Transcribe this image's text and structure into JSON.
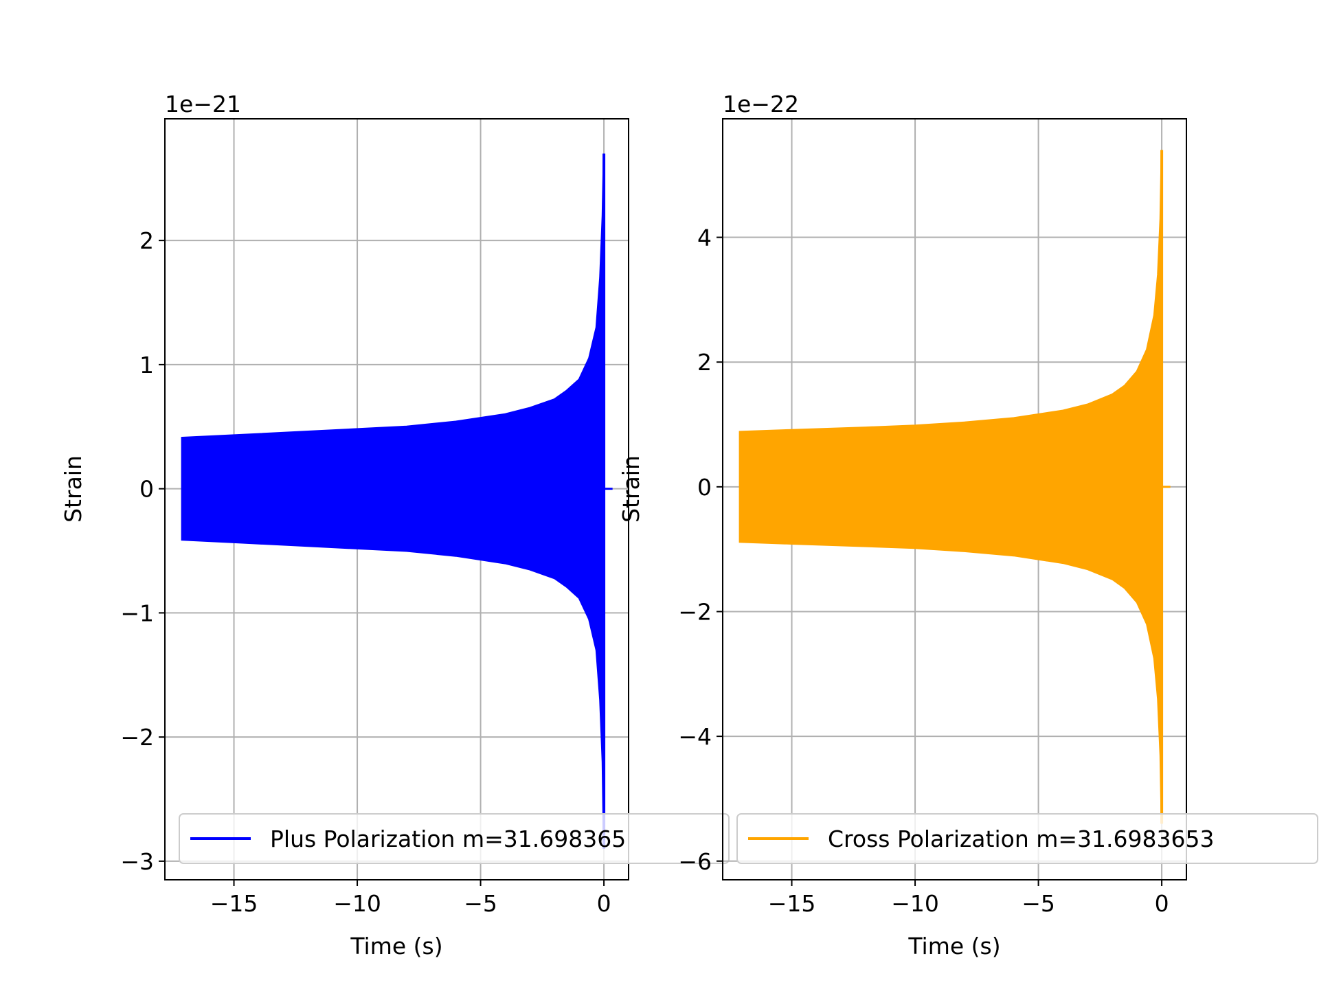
{
  "chart_data": [
    {
      "type": "line",
      "xlabel": "Time (s)",
      "ylabel": "Strain",
      "offset_label": "1e−21",
      "xlim": [
        -17.8,
        1.0
      ],
      "ylim": [
        -3.15,
        2.98
      ],
      "xticks": [
        -15,
        -10,
        -5,
        0
      ],
      "xtick_labels": [
        "−15",
        "−10",
        "−5",
        "0"
      ],
      "yticks": [
        -3,
        -2,
        -1,
        0,
        1,
        2
      ],
      "ytick_labels": [
        "−3",
        "−2",
        "−1",
        "0",
        "1",
        "2"
      ],
      "grid": true,
      "legend_position": "lower-right",
      "color": "#0000ff",
      "series": [
        {
          "name": "Plus Polarization m=31.698365",
          "envelope": {
            "x": [
              -17.1,
              -15,
              -12,
              -10,
              -8,
              -6,
              -4,
              -3,
              -2,
              -1.5,
              -1,
              -0.6,
              -0.3,
              -0.15,
              -0.05,
              0
            ],
            "y": [
              0.41,
              0.43,
              0.46,
              0.48,
              0.5,
              0.54,
              0.6,
              0.65,
              0.72,
              0.79,
              0.88,
              1.05,
              1.3,
              1.7,
              2.2,
              2.7
            ]
          },
          "y_min_at_merger": -2.9
        }
      ]
    },
    {
      "type": "line",
      "xlabel": "Time (s)",
      "ylabel": "Strain",
      "offset_label": "1e−22",
      "xlim": [
        -17.8,
        1.0
      ],
      "ylim": [
        -6.3,
        5.9
      ],
      "xticks": [
        -15,
        -10,
        -5,
        0
      ],
      "xtick_labels": [
        "−15",
        "−10",
        "−5",
        "0"
      ],
      "yticks": [
        -6,
        -4,
        -2,
        0,
        2,
        4
      ],
      "ytick_labels": [
        "−6",
        "−4",
        "−2",
        "0",
        "2",
        "4"
      ],
      "grid": true,
      "legend_position": "lower-right",
      "color": "#ffa500",
      "series": [
        {
          "name": "Cross Polarization m=31.6983653",
          "envelope": {
            "x": [
              -17.1,
              -15,
              -12,
              -10,
              -8,
              -6,
              -4,
              -3,
              -2,
              -1.5,
              -1,
              -0.6,
              -0.3,
              -0.15,
              -0.05,
              0
            ],
            "y": [
              0.88,
              0.91,
              0.95,
              0.98,
              1.03,
              1.1,
              1.22,
              1.32,
              1.48,
              1.62,
              1.85,
              2.2,
              2.75,
              3.4,
              4.3,
              5.4
            ]
          },
          "y_min_at_merger": -5.4
        }
      ]
    }
  ]
}
